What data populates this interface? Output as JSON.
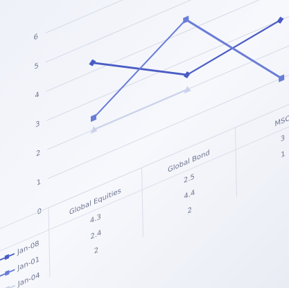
{
  "chart_data": {
    "type": "line",
    "categories": [
      "Global Equities",
      "Global Bond",
      "MSC"
    ],
    "series": [
      {
        "name": "Jan-08",
        "color": "#4a5cc4",
        "values": [
          4.3,
          2.5,
          3
        ]
      },
      {
        "name": "Jan-01",
        "color": "#6a7dd6",
        "values": [
          2.4,
          4.4,
          1
        ]
      },
      {
        "name": "Jan-04",
        "color": "#cbd2ea",
        "values": [
          2,
          2,
          null
        ]
      }
    ],
    "ylim": [
      0,
      6.5
    ],
    "yticks": [
      0,
      1,
      2,
      3,
      4,
      5,
      6
    ],
    "grid": true,
    "data_table": true
  }
}
